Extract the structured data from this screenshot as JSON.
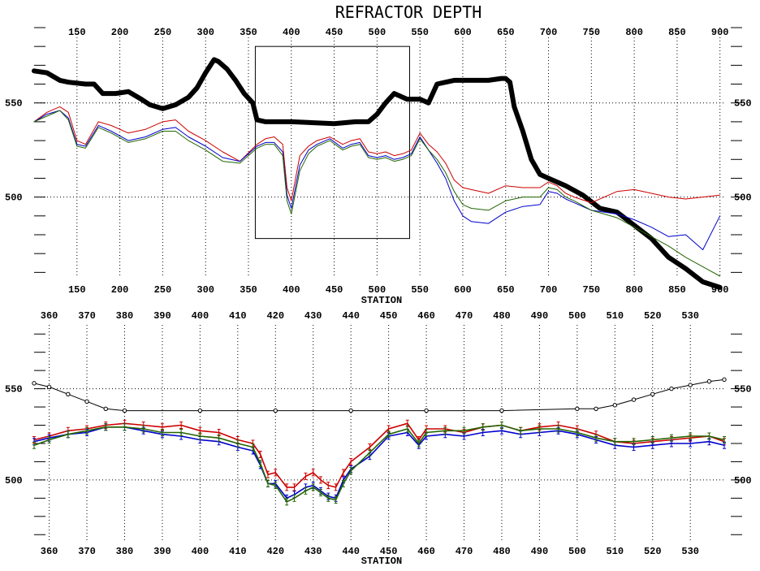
{
  "chart_data": [
    {
      "type": "line",
      "title": "REFRACTOR DEPTH",
      "xlabel": "STATION",
      "ylabel": "",
      "xlim": [
        100,
        905
      ],
      "ylim": [
        458,
        590
      ],
      "x_ticks": [
        150,
        200,
        250,
        300,
        350,
        400,
        450,
        500,
        550,
        600,
        650,
        700,
        750,
        800,
        850,
        900
      ],
      "y_ticks": [
        500,
        550
      ],
      "grid": true,
      "zoom_box": {
        "x": [
          358,
          538
        ],
        "y": [
          478,
          580
        ]
      },
      "series": [
        {
          "color": "#000000",
          "style": "thick",
          "x": [
            100,
            115,
            130,
            140,
            160,
            170,
            180,
            195,
            210,
            225,
            235,
            250,
            265,
            280,
            290,
            300,
            310,
            315,
            325,
            335,
            345,
            355,
            360,
            370,
            380,
            400,
            450,
            475,
            490,
            500,
            510,
            520,
            535,
            550,
            560,
            570,
            580,
            590,
            610,
            630,
            645,
            650,
            655,
            660,
            670,
            680,
            690,
            700,
            720,
            740,
            760,
            780,
            800,
            820,
            840,
            860,
            880,
            900
          ],
          "y": [
            567,
            566,
            562,
            561,
            560,
            560,
            555,
            555,
            556,
            552,
            549,
            547,
            549,
            553,
            558,
            566,
            573,
            572,
            568,
            562,
            555,
            550,
            541,
            540,
            540,
            540,
            539,
            540,
            540,
            544,
            550,
            555,
            552,
            552,
            550,
            560,
            561,
            562,
            562,
            562,
            563,
            563,
            561,
            548,
            535,
            520,
            512,
            510,
            506,
            501,
            494,
            492,
            485,
            478,
            468,
            462,
            455,
            452
          ]
        },
        {
          "color": "#cc0000",
          "x": [
            100,
            115,
            130,
            140,
            150,
            160,
            175,
            190,
            210,
            230,
            250,
            265,
            280,
            300,
            320,
            340,
            360,
            370,
            380,
            390,
            395,
            400,
            410,
            420,
            430,
            445,
            460,
            470,
            480,
            490,
            500,
            510,
            520,
            530,
            540,
            550,
            560,
            570,
            580,
            590,
            600,
            610,
            630,
            650,
            670,
            690,
            700,
            710,
            720,
            730,
            750,
            780,
            800,
            820,
            840,
            860,
            880,
            900
          ],
          "y": [
            540,
            545,
            548,
            545,
            530,
            528,
            540,
            538,
            534,
            536,
            540,
            541,
            535,
            530,
            524,
            519,
            528,
            531,
            532,
            528,
            505,
            498,
            522,
            527,
            530,
            532,
            528,
            530,
            531,
            524,
            523,
            524,
            522,
            523,
            525,
            534,
            528,
            524,
            518,
            509,
            505,
            504,
            502,
            506,
            505,
            505,
            508,
            506,
            502,
            500,
            497,
            503,
            504,
            502,
            500,
            499,
            500,
            501
          ]
        },
        {
          "color": "#0000cc",
          "x": [
            100,
            115,
            130,
            140,
            150,
            160,
            175,
            190,
            210,
            230,
            250,
            265,
            280,
            300,
            320,
            340,
            360,
            370,
            380,
            390,
            395,
            400,
            410,
            420,
            430,
            445,
            460,
            470,
            480,
            490,
            500,
            510,
            520,
            530,
            540,
            550,
            560,
            570,
            580,
            590,
            600,
            610,
            630,
            650,
            670,
            690,
            700,
            710,
            720,
            730,
            750,
            780,
            800,
            820,
            840,
            860,
            880,
            900
          ],
          "y": [
            540,
            544,
            546,
            542,
            528,
            527,
            538,
            535,
            530,
            532,
            536,
            537,
            532,
            527,
            521,
            519,
            527,
            529,
            529,
            524,
            501,
            494,
            517,
            525,
            528,
            531,
            526,
            528,
            529,
            522,
            521,
            522,
            520,
            521,
            523,
            532,
            525,
            518,
            510,
            498,
            490,
            487,
            486,
            492,
            495,
            496,
            503,
            502,
            499,
            497,
            493,
            491,
            488,
            484,
            479,
            480,
            472,
            490
          ]
        },
        {
          "color": "#226600",
          "x": [
            100,
            115,
            130,
            140,
            150,
            160,
            175,
            190,
            210,
            230,
            250,
            265,
            280,
            300,
            320,
            340,
            360,
            370,
            380,
            390,
            395,
            400,
            410,
            420,
            430,
            445,
            460,
            470,
            480,
            490,
            500,
            510,
            520,
            530,
            540,
            550,
            560,
            570,
            580,
            590,
            600,
            610,
            630,
            650,
            670,
            690,
            700,
            710,
            720,
            730,
            750,
            780,
            800,
            820,
            840,
            860,
            880,
            900
          ],
          "y": [
            540,
            543,
            546,
            541,
            527,
            526,
            537,
            534,
            529,
            531,
            535,
            535,
            530,
            525,
            519,
            518,
            526,
            528,
            528,
            522,
            498,
            491,
            514,
            523,
            527,
            530,
            525,
            527,
            528,
            521,
            520,
            521,
            519,
            520,
            522,
            531,
            525,
            520,
            513,
            503,
            496,
            494,
            493,
            498,
            500,
            500,
            505,
            504,
            500,
            498,
            493,
            489,
            484,
            479,
            474,
            468,
            463,
            458
          ]
        }
      ]
    },
    {
      "type": "line",
      "title": "",
      "xlabel": "STATION",
      "ylabel": "",
      "xlim": [
        356,
        539
      ],
      "ylim": [
        467,
        585
      ],
      "x_ticks": [
        360,
        370,
        380,
        390,
        400,
        410,
        420,
        430,
        440,
        450,
        460,
        470,
        480,
        490,
        500,
        510,
        520,
        530
      ],
      "y_ticks": [
        500,
        550
      ],
      "grid": true,
      "error_bars": true,
      "series": [
        {
          "color": "#000000",
          "marker": "circle",
          "x": [
            356,
            360,
            365,
            370,
            375,
            380,
            400,
            420,
            440,
            460,
            480,
            500,
            505,
            510,
            515,
            520,
            525,
            530,
            535,
            539
          ],
          "y": [
            553,
            551,
            547,
            543,
            539,
            538,
            538,
            538,
            538,
            538,
            538,
            539,
            539,
            541,
            544,
            547,
            550,
            552,
            554,
            555
          ]
        },
        {
          "color": "#cc0000",
          "x": [
            356,
            360,
            365,
            370,
            375,
            380,
            385,
            390,
            395,
            400,
            405,
            410,
            414,
            416,
            418,
            420,
            423,
            425,
            428,
            430,
            432,
            434,
            436,
            438,
            440,
            445,
            450,
            455,
            458,
            460,
            465,
            470,
            475,
            480,
            485,
            490,
            495,
            500,
            505,
            510,
            515,
            520,
            525,
            530,
            535,
            539
          ],
          "y": [
            522,
            524,
            527,
            528,
            530,
            531,
            530,
            529,
            530,
            527,
            526,
            522,
            520,
            514,
            503,
            504,
            496,
            496,
            502,
            504,
            500,
            497,
            496,
            504,
            510,
            518,
            528,
            531,
            522,
            528,
            528,
            526,
            529,
            530,
            527,
            529,
            530,
            528,
            525,
            521,
            520,
            521,
            522,
            523,
            524,
            521
          ]
        },
        {
          "color": "#0000cc",
          "x": [
            356,
            360,
            365,
            370,
            375,
            380,
            385,
            390,
            395,
            400,
            405,
            410,
            414,
            416,
            418,
            420,
            423,
            425,
            428,
            430,
            432,
            434,
            436,
            438,
            440,
            445,
            450,
            455,
            458,
            460,
            465,
            470,
            475,
            480,
            485,
            490,
            495,
            500,
            505,
            510,
            515,
            520,
            525,
            530,
            535,
            539
          ],
          "y": [
            521,
            523,
            525,
            526,
            529,
            529,
            527,
            525,
            524,
            522,
            521,
            518,
            516,
            508,
            498,
            498,
            490,
            492,
            496,
            497,
            494,
            491,
            490,
            500,
            506,
            513,
            524,
            526,
            519,
            524,
            525,
            524,
            526,
            527,
            525,
            526,
            527,
            525,
            522,
            519,
            518,
            519,
            520,
            520,
            521,
            519
          ]
        },
        {
          "color": "#226600",
          "x": [
            356,
            360,
            365,
            370,
            375,
            380,
            385,
            390,
            395,
            400,
            405,
            410,
            414,
            416,
            418,
            420,
            423,
            425,
            428,
            430,
            432,
            434,
            436,
            438,
            440,
            445,
            450,
            455,
            458,
            460,
            465,
            470,
            475,
            480,
            485,
            490,
            495,
            500,
            505,
            510,
            515,
            520,
            525,
            530,
            535,
            539
          ],
          "y": [
            519,
            522,
            525,
            527,
            529,
            529,
            528,
            526,
            526,
            524,
            523,
            520,
            518,
            509,
            498,
            497,
            488,
            490,
            494,
            496,
            493,
            490,
            489,
            498,
            505,
            515,
            525,
            528,
            520,
            526,
            527,
            527,
            529,
            530,
            527,
            528,
            528,
            526,
            523,
            521,
            521,
            522,
            523,
            524,
            524,
            522
          ]
        }
      ]
    }
  ]
}
